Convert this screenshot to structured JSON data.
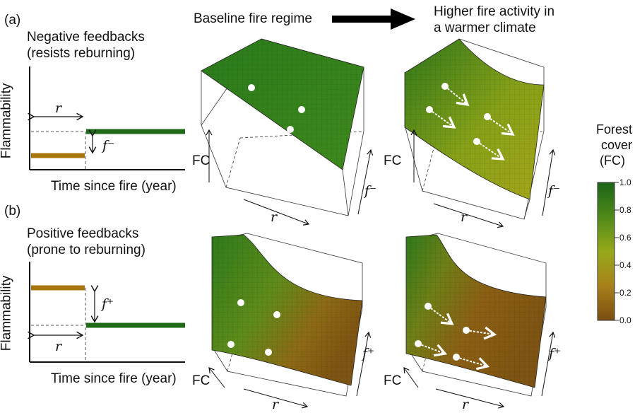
{
  "panel_a": {
    "label": "(a)",
    "title_line1": "Negative feedbacks",
    "title_line2": "(resists reburning)",
    "ylabel": "Flammability",
    "xlabel": "Time since fire (year)",
    "r_symbol": "r",
    "f_symbol": "f⁻"
  },
  "panel_b": {
    "label": "(b)",
    "title_line1": "Positive feedbacks",
    "title_line2": "(prone to reburning)",
    "ylabel": "Flammability",
    "xlabel": "Time since fire (year)",
    "r_symbol": "r",
    "f_symbol": "f⁺"
  },
  "header": {
    "baseline": "Baseline fire regime",
    "warmer_line1": "Higher fire activity in",
    "warmer_line2": "a warmer climate"
  },
  "surface_axes": {
    "fc": "FC",
    "r": "r",
    "f_minus": "f⁻",
    "f_plus": "f⁺"
  },
  "colorbar": {
    "title_line1": "Forest",
    "title_line2": "cover",
    "title_line3": "(FC)",
    "ticks": [
      "1.0",
      "0.8",
      "0.6",
      "0.4",
      "0.2",
      "0.0"
    ],
    "color_high": "#1f6b1a",
    "color_mid": "#8ea316",
    "color_low": "#8a5712"
  },
  "colors": {
    "forest": "#1f6b1a",
    "shrub": "#a8760f"
  }
}
